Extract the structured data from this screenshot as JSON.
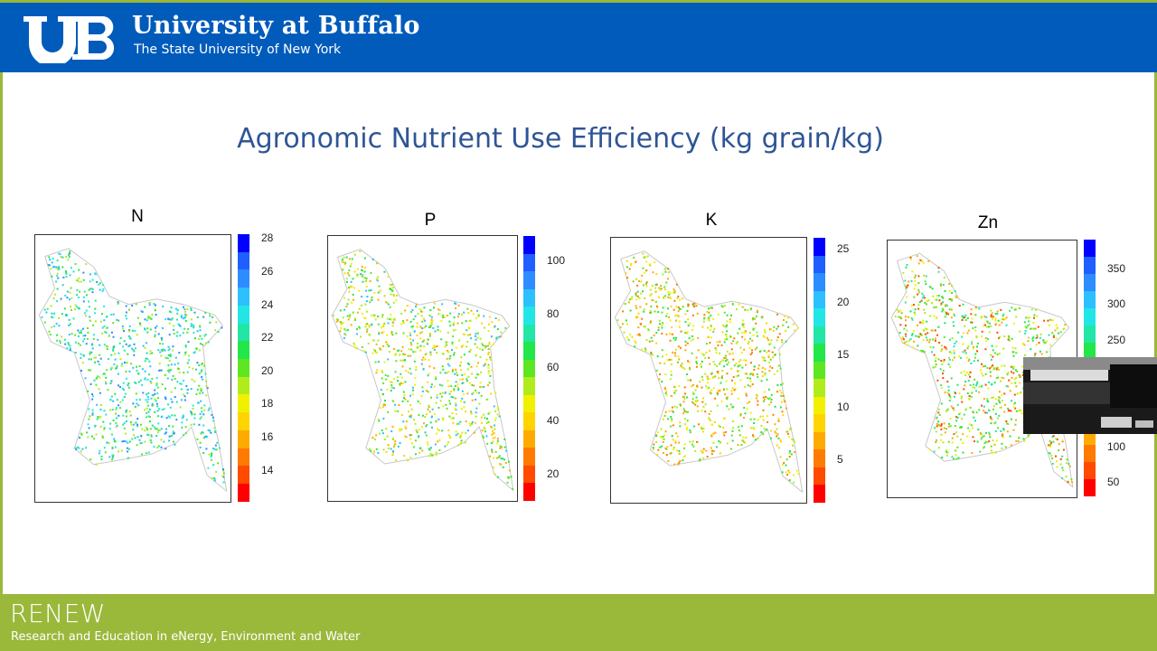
{
  "header": {
    "logo_text": "UB",
    "university_name": "University at Buffalo",
    "university_subtitle": "The State University of New York"
  },
  "slide": {
    "title": "Agronomic Nutrient Use Efficiency (kg grain/kg)"
  },
  "panels": [
    {
      "label": "N",
      "ticks": [
        "28",
        "26",
        "24",
        "22",
        "20",
        "18",
        "16",
        "14"
      ]
    },
    {
      "label": "P",
      "ticks": [
        "100",
        "80",
        "60",
        "40",
        "20"
      ]
    },
    {
      "label": "K",
      "ticks": [
        "25",
        "20",
        "15",
        "10",
        "5"
      ]
    },
    {
      "label": "Zn",
      "ticks": [
        "350",
        "300",
        "250",
        "100",
        "50"
      ]
    }
  ],
  "footer": {
    "brand": "RENEW",
    "tagline": "Research and Education in eNergy, Environment and Water"
  },
  "colors": {
    "header_blue": "#005bbb",
    "footer_green": "#9ab83a",
    "title_blue": "#2f5597",
    "scale_high": "#0000ff",
    "scale_low": "#ff0000"
  }
}
